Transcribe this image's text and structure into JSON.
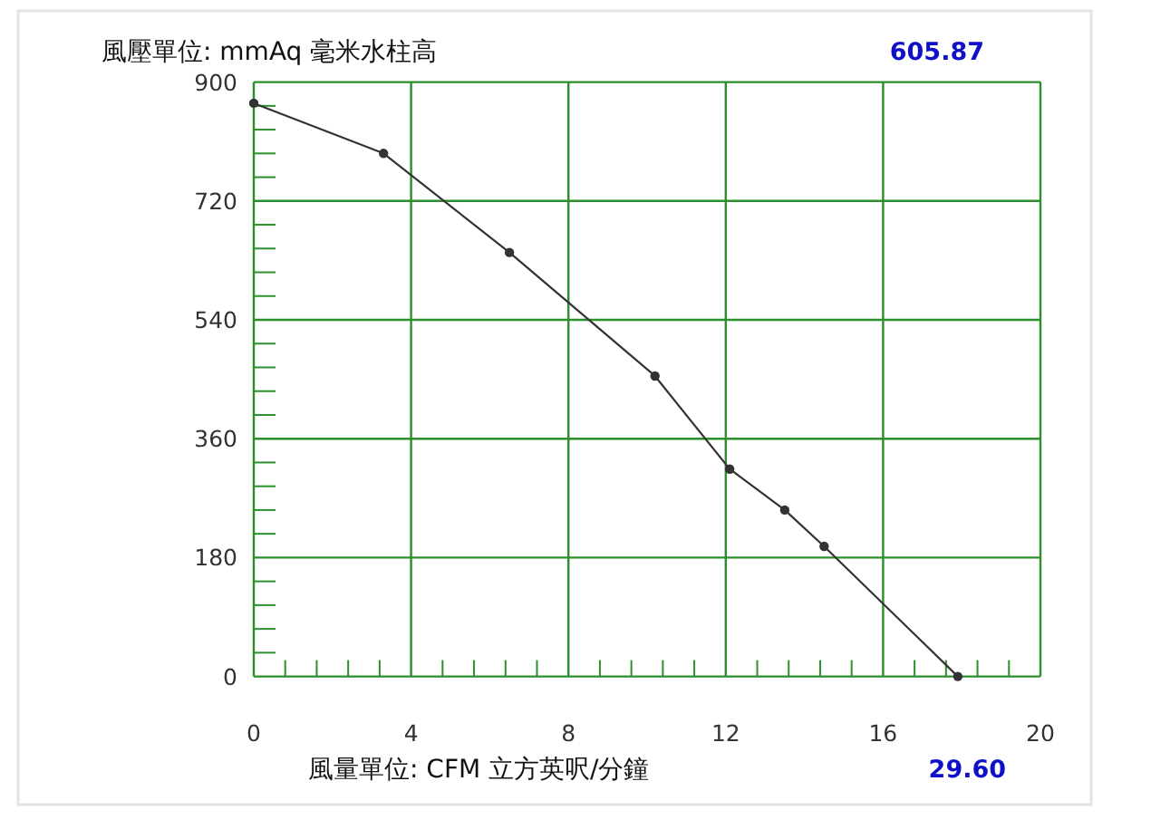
{
  "chart_data": {
    "type": "line",
    "ylabel": "風壓單位: mmAq 毫米水柱高",
    "xlabel": "風量單位: CFM 立方英呎/分鐘",
    "annotations": [
      "605.87",
      "29.60"
    ],
    "x": [
      0,
      3.3,
      6.5,
      10.2,
      12.1,
      13.5,
      14.5,
      17.9
    ],
    "series": [
      {
        "color": "#333333",
        "values": [
          868,
          792,
          642,
          455,
          314,
          252,
          197,
          0
        ]
      }
    ],
    "xlim": [
      0,
      20
    ],
    "ylim": [
      0,
      900
    ],
    "xticks": [
      0,
      {
        "value": 0.8,
        "label": null
      },
      {
        "value": 1.6,
        "label": null
      },
      {
        "value": 2.4,
        "label": null
      },
      {
        "value": 3.2,
        "label": null
      },
      4,
      {
        "value": 4.8,
        "label": null
      },
      {
        "value": 5.6,
        "label": null
      },
      {
        "value": 6.4,
        "label": null
      },
      {
        "value": 7.2,
        "label": null
      },
      8,
      {
        "value": 8.8,
        "label": null
      },
      {
        "value": 9.6,
        "label": null
      },
      {
        "value": 10.4,
        "label": null
      },
      {
        "value": 11.2,
        "label": null
      },
      12,
      {
        "value": 12.8,
        "label": null
      },
      {
        "value": 13.6,
        "label": null
      },
      {
        "value": 14.4,
        "label": null
      },
      {
        "value": 15.2,
        "label": null
      },
      16,
      {
        "value": 16.8,
        "label": null
      },
      {
        "value": 17.6,
        "label": null
      },
      {
        "value": 18.4,
        "label": null
      },
      {
        "value": 19.2,
        "label": null
      },
      20
    ],
    "yticks": [
      0,
      {
        "value": 36,
        "label": null
      },
      {
        "value": 72,
        "label": null
      },
      {
        "value": 108,
        "label": null
      },
      {
        "value": 144,
        "label": null
      },
      180,
      {
        "value": 216,
        "label": null
      },
      {
        "value": 252,
        "label": null
      },
      {
        "value": 288,
        "label": null
      },
      {
        "value": 324,
        "label": null
      },
      360,
      {
        "value": 396,
        "label": null
      },
      {
        "value": 432,
        "label": null
      },
      {
        "value": 468,
        "label": null
      },
      {
        "value": 504,
        "label": null
      },
      540,
      {
        "value": 576,
        "label": null
      },
      {
        "value": 612,
        "label": null
      },
      {
        "value": 648,
        "label": null
      },
      {
        "value": 684,
        "label": null
      },
      720,
      {
        "value": 756,
        "label": null
      },
      {
        "value": 792,
        "label": null
      },
      {
        "value": 828,
        "label": null
      },
      {
        "value": 864,
        "label": null
      },
      900
    ],
    "grid": true,
    "marker": "circle",
    "line_style": "solid"
  }
}
